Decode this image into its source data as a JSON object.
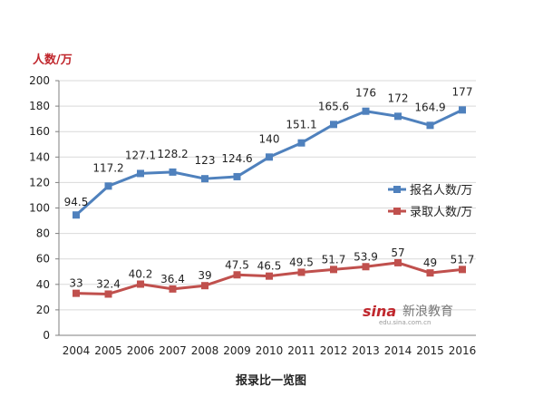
{
  "unit_label": "人数/万",
  "caption": "报录比一览图",
  "watermark": {
    "logo": "sina",
    "brand": "新浪教育",
    "url": "edu.sina.com.cn"
  },
  "colors": {
    "series_1": "#4f81bd",
    "series_2": "#c0504d",
    "gridline": "#d9d9d9",
    "axis": "#7f7f7f"
  },
  "chart_data": {
    "type": "line",
    "title": "",
    "xlabel": "",
    "ylabel": "人数/万",
    "ylim": [
      0,
      200
    ],
    "yticks": [
      0,
      20,
      40,
      60,
      80,
      100,
      120,
      140,
      160,
      180,
      200
    ],
    "grid": true,
    "legend_position": "right",
    "x": [
      "2004",
      "2005",
      "2006",
      "2007",
      "2008",
      "2009",
      "2010",
      "2011",
      "2012",
      "2013",
      "2014",
      "2015",
      "2016"
    ],
    "series": [
      {
        "name": "报名人数/万",
        "values": [
          94.5,
          117.2,
          127.1,
          128.2,
          123,
          124.6,
          140,
          151.1,
          165.6,
          176,
          172,
          164.9,
          177
        ],
        "labels": [
          "94.5",
          "117.2",
          "127.1",
          "128.2",
          "123",
          "124.6",
          "140",
          "151.1",
          "165.6",
          "176",
          "172",
          "164.9",
          "177"
        ]
      },
      {
        "name": "录取人数/万",
        "values": [
          33,
          32.4,
          40.2,
          36.4,
          39,
          47.5,
          46.5,
          49.5,
          51.7,
          53.9,
          57,
          49,
          51.7
        ],
        "labels": [
          "33",
          "32.4",
          "40.2",
          "36.4",
          "39",
          "47.5",
          "46.5",
          "49.5",
          "51.7",
          "53.9",
          "57",
          "49",
          "51.7"
        ]
      }
    ]
  }
}
